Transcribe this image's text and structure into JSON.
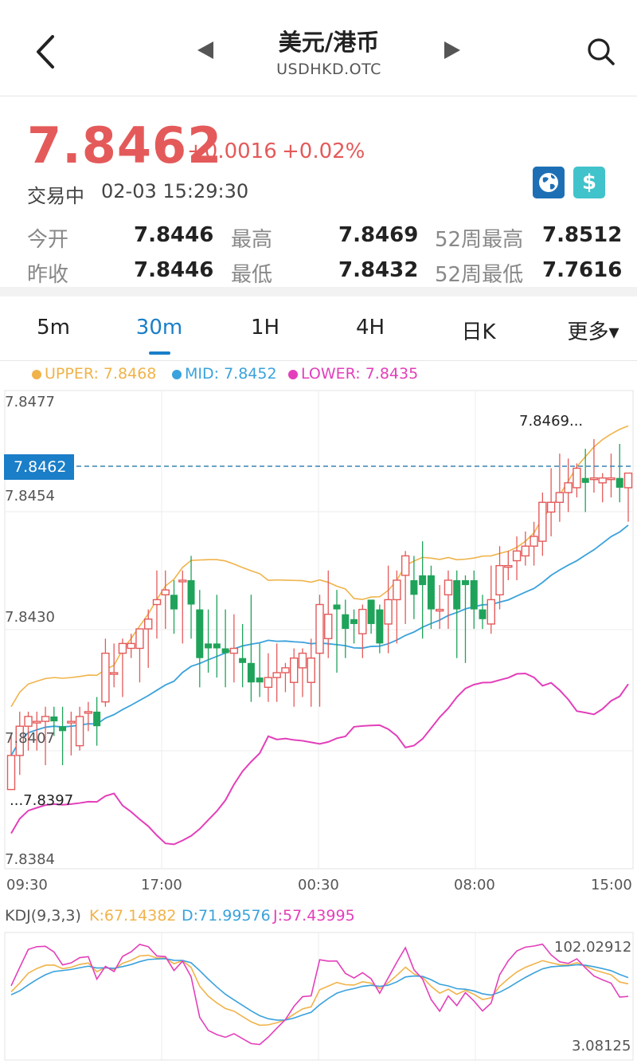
{
  "header": {
    "title": "美元/港币",
    "subtitle": "USDHKD.OTC"
  },
  "quote": {
    "price": "7.8462",
    "change": "+0.0016",
    "change_pct": "+0.02%",
    "status": "交易中",
    "time": "02-03 15:29:30"
  },
  "stats": {
    "open_label": "今开",
    "open": "7.8446",
    "high_label": "最高",
    "high": "7.8469",
    "high52_label": "52周最高",
    "high52": "7.8512",
    "prev_label": "昨收",
    "prev": "7.8446",
    "low_label": "最低",
    "low": "7.8432",
    "low52_label": "52周最低",
    "low52": "7.7616"
  },
  "tabs": [
    "5m",
    "30m",
    "1H",
    "4H",
    "日K",
    "更多▾"
  ],
  "active_tab": "30m",
  "legend": {
    "upper": "UPPER: 7.8468",
    "mid": "MID: 7.8452",
    "lower": "LOWER: 7.8435",
    "upper_color": "#f0b34a",
    "mid_color": "#3aa2dc",
    "lower_color": "#e33fba"
  },
  "price_axis": {
    "labels": [
      "7.8477",
      "7.8454",
      "7.8430",
      "7.8407",
      "7.8384"
    ],
    "current_tag": "7.8462",
    "max_annot": "7.8469...",
    "min_annot": "...7.8397"
  },
  "time_axis": [
    "09:30",
    "17:00",
    "00:30",
    "08:00",
    "15:00"
  ],
  "kdj": {
    "title": "KDJ(9,3,3)",
    "k": "K:67.14382",
    "d": "D:71.99576",
    "j": "J:57.43995",
    "max": "102.02912",
    "min": "3.08125",
    "k_color": "#f0b34a",
    "d_color": "#3aa2dc",
    "j_color": "#e33fba"
  },
  "colors": {
    "up": "#e45a5a",
    "down": "#1fa35a",
    "accent": "#1a7ec8"
  },
  "chart_data": {
    "type": "candlestick",
    "y_range": [
      7.8384,
      7.8477
    ],
    "candles": [
      [
        7.8397,
        7.8404,
        7.8397,
        7.8408
      ],
      [
        7.8404,
        7.841,
        7.84,
        7.8413
      ],
      [
        7.841,
        7.8412,
        7.8405,
        7.8413
      ],
      [
        7.8411,
        7.8411,
        7.8405,
        7.8413
      ],
      [
        7.8411,
        7.8412,
        7.8402,
        7.8414
      ],
      [
        7.8412,
        7.8411,
        7.8408,
        7.8414
      ],
      [
        7.841,
        7.8409,
        7.8402,
        7.8414
      ],
      [
        7.8411,
        7.8411,
        7.8404,
        7.8413
      ],
      [
        7.8406,
        7.8412,
        7.8405,
        7.8414
      ],
      [
        7.8413,
        7.8413,
        7.8409,
        7.8415
      ],
      [
        7.8413,
        7.841,
        7.8406,
        7.8416
      ],
      [
        7.8415,
        7.8425,
        7.8414,
        7.8428
      ],
      [
        7.8421,
        7.8421,
        7.8418,
        7.8427
      ],
      [
        7.8425,
        7.8427,
        7.8416,
        7.8428
      ],
      [
        7.8426,
        7.8427,
        7.8424,
        7.8429
      ],
      [
        7.8426,
        7.843,
        7.8419,
        7.843
      ],
      [
        7.843,
        7.8432,
        7.8422,
        7.8434
      ],
      [
        7.8435,
        7.8436,
        7.8428,
        7.8442
      ],
      [
        7.8437,
        7.8438,
        7.843,
        7.8442
      ],
      [
        7.8437,
        7.8434,
        7.8429,
        7.844
      ],
      [
        7.844,
        7.844,
        7.8427,
        7.8442
      ],
      [
        7.844,
        7.8435,
        7.8428,
        7.8445
      ],
      [
        7.8434,
        7.8424,
        7.8418,
        7.8438
      ],
      [
        7.8427,
        7.8426,
        7.8421,
        7.8434
      ],
      [
        7.8427,
        7.8426,
        7.842,
        7.8437
      ],
      [
        7.8426,
        7.8425,
        7.8418,
        7.8434
      ],
      [
        7.8425,
        7.8426,
        7.8419,
        7.8433
      ],
      [
        7.8424,
        7.8423,
        7.8418,
        7.8431
      ],
      [
        7.8423,
        7.8419,
        7.8415,
        7.8437
      ],
      [
        7.842,
        7.8419,
        7.8416,
        7.8427
      ],
      [
        7.8418,
        7.842,
        7.8415,
        7.8425
      ],
      [
        7.842,
        7.8421,
        7.8415,
        7.8427
      ],
      [
        7.8421,
        7.8422,
        7.8417,
        7.8423
      ],
      [
        7.8419,
        7.8424,
        7.8414,
        7.8426
      ],
      [
        7.8422,
        7.8425,
        7.8416,
        7.8426
      ],
      [
        7.8419,
        7.8424,
        7.8414,
        7.8428
      ],
      [
        7.8425,
        7.8435,
        7.8414,
        7.8437
      ],
      [
        7.8428,
        7.8433,
        7.8424,
        7.8442
      ],
      [
        7.8435,
        7.8434,
        7.8421,
        7.8438
      ],
      [
        7.8433,
        7.843,
        7.8424,
        7.8436
      ],
      [
        7.8432,
        7.8431,
        7.8427,
        7.8434
      ],
      [
        7.8429,
        7.8434,
        7.8424,
        7.8435
      ],
      [
        7.8436,
        7.8431,
        7.8429,
        7.8436
      ],
      [
        7.8434,
        7.8427,
        7.8425,
        7.8435
      ],
      [
        7.8431,
        7.8436,
        7.8425,
        7.8443
      ],
      [
        7.8436,
        7.844,
        7.8427,
        7.8442
      ],
      [
        7.8441,
        7.8445,
        7.8431,
        7.8446
      ],
      [
        7.844,
        7.8437,
        7.8432,
        7.8445
      ],
      [
        7.8441,
        7.8439,
        7.8428,
        7.8448
      ],
      [
        7.8441,
        7.8434,
        7.843,
        7.8443
      ],
      [
        7.8434,
        7.8434,
        7.843,
        7.8439
      ],
      [
        7.8437,
        7.844,
        7.843,
        7.8442
      ],
      [
        7.844,
        7.8434,
        7.8424,
        7.8442
      ],
      [
        7.844,
        7.8439,
        7.8423,
        7.8441
      ],
      [
        7.844,
        7.8434,
        7.843,
        7.8442
      ],
      [
        7.8434,
        7.8432,
        7.843,
        7.8437
      ],
      [
        7.8431,
        7.8436,
        7.8429,
        7.8443
      ],
      [
        7.8437,
        7.8443,
        7.8434,
        7.8447
      ],
      [
        7.8443,
        7.8443,
        7.844,
        7.8446
      ],
      [
        7.8444,
        7.8446,
        7.844,
        7.8449
      ],
      [
        7.8445,
        7.8447,
        7.8443,
        7.845
      ],
      [
        7.8447,
        7.8449,
        7.8443,
        7.8452
      ],
      [
        7.8448,
        7.8456,
        7.8445,
        7.8458
      ],
      [
        7.8454,
        7.8456,
        7.8449,
        7.8463
      ],
      [
        7.8456,
        7.8458,
        7.8452,
        7.8466
      ],
      [
        7.8458,
        7.846,
        7.8454,
        7.8465
      ],
      [
        7.8459,
        7.8463,
        7.8457,
        7.8464
      ],
      [
        7.8461,
        7.846,
        7.8454,
        7.8467
      ],
      [
        7.8461,
        7.8461,
        7.8458,
        7.8469
      ],
      [
        7.846,
        7.8461,
        7.8456,
        7.8462
      ],
      [
        7.8461,
        7.8461,
        7.8457,
        7.8466
      ],
      [
        7.8461,
        7.8459,
        7.8456,
        7.8468
      ],
      [
        7.8459,
        7.8462,
        7.8452,
        7.8462
      ]
    ]
  }
}
